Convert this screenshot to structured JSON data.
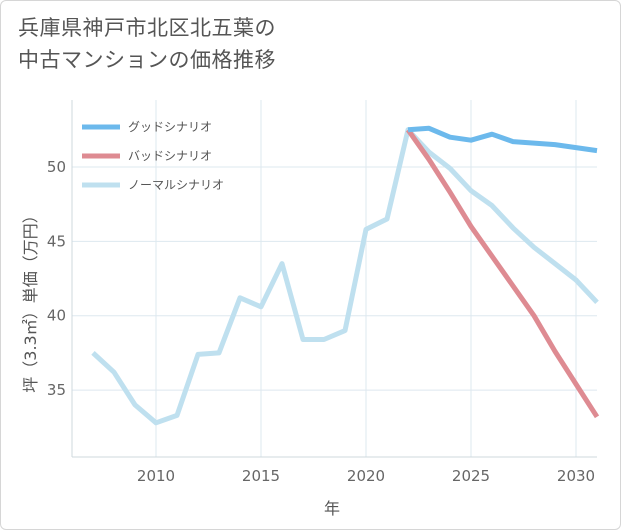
{
  "title_line1": "兵庫県神戸市北区北五葉の",
  "title_line2": "中古マンションの価格推移",
  "chart_data": {
    "type": "line",
    "title": "兵庫県神戸市北区北五葉の中古マンションの価格推移",
    "xlabel": "年",
    "ylabel": "坪（3.3㎡）単価（万円）",
    "xlim": [
      2006,
      2031
    ],
    "ylim": [
      30.5,
      54.5
    ],
    "xticks": [
      2010,
      2015,
      2020,
      2025,
      2030
    ],
    "yticks": [
      35,
      40,
      45,
      50
    ],
    "grid": true,
    "legend_position": "top-left",
    "series": [
      {
        "name": "グッドシナリオ",
        "color": "#6cb9ec",
        "x": [
          2022,
          2023,
          2024,
          2025,
          2026,
          2027,
          2028,
          2029,
          2030,
          2031
        ],
        "values": [
          52.5,
          52.6,
          52.0,
          51.8,
          52.2,
          51.7,
          51.6,
          51.5,
          51.3,
          51.1
        ]
      },
      {
        "name": "バッドシナリオ",
        "color": "#de8b92",
        "x": [
          2022,
          2023,
          2024,
          2025,
          2026,
          2027,
          2028,
          2029,
          2030,
          2031
        ],
        "values": [
          52.5,
          50.5,
          48.3,
          46.0,
          44.0,
          42.0,
          40.0,
          37.6,
          35.4,
          33.2
        ]
      },
      {
        "name": "ノーマルシナリオ",
        "color": "#bfe0ef",
        "x": [
          2007,
          2008,
          2009,
          2010,
          2011,
          2012,
          2013,
          2014,
          2015,
          2016,
          2017,
          2018,
          2019,
          2020,
          2021,
          2022,
          2023,
          2024,
          2025,
          2026,
          2027,
          2028,
          2029,
          2030,
          2031
        ],
        "values": [
          37.5,
          36.2,
          34.0,
          32.8,
          33.3,
          37.4,
          37.5,
          41.2,
          40.6,
          43.5,
          38.4,
          38.4,
          39.0,
          45.8,
          46.5,
          52.5,
          51.0,
          49.9,
          48.4,
          47.4,
          45.9,
          44.6,
          43.5,
          42.4,
          40.9
        ]
      }
    ]
  }
}
